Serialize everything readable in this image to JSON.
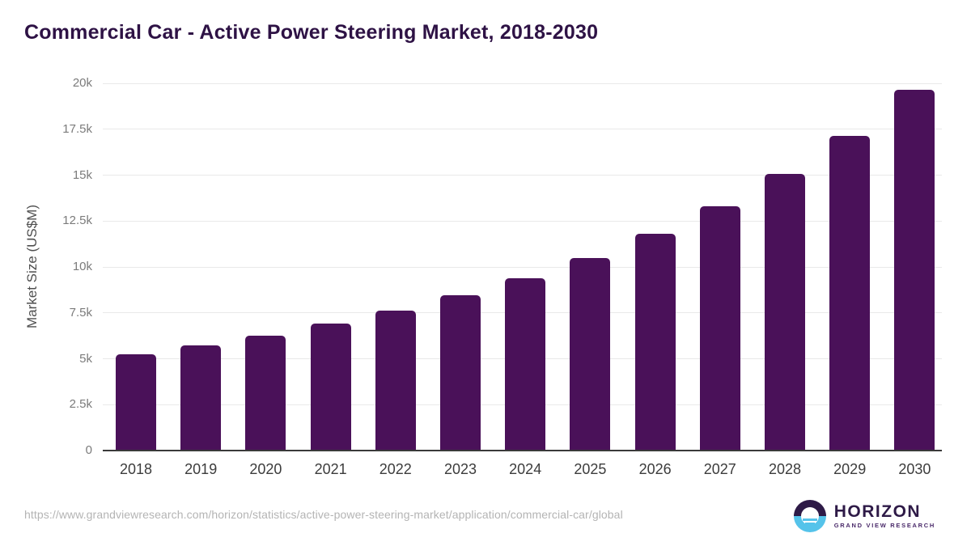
{
  "page": {
    "title": "Commercial Car - Active Power Steering Market, 2018-2030",
    "footer_url": "https://www.grandviewresearch.com/horizon/statistics/active-power-steering-market/application/commercial-car/global"
  },
  "logo": {
    "name": "HORIZON",
    "subtitle": "GRAND VIEW RESEARCH"
  },
  "colors": {
    "title": "#2e1245",
    "bar": "#4a1159",
    "gridline": "#e9e9e9",
    "axis_line": "#3a3a3a",
    "y_tick_text": "#7b7b7b",
    "x_tick_text": "#3c3c3c",
    "footer_text": "#b4b4b4",
    "logo_purple": "#2e1a47",
    "logo_blue": "#55c3ea",
    "logo_subtitle_purple": "#4a2a6a"
  },
  "chart_data": {
    "type": "bar",
    "title": "Commercial Car - Active Power Steering Market, 2018-2030",
    "xlabel": "",
    "ylabel": "Market Size (US$M)",
    "categories": [
      "2018",
      "2019",
      "2020",
      "2021",
      "2022",
      "2023",
      "2024",
      "2025",
      "2026",
      "2027",
      "2028",
      "2029",
      "2030"
    ],
    "values": [
      5230,
      5720,
      6260,
      6910,
      7630,
      8450,
      9380,
      10490,
      11790,
      13320,
      15070,
      17140,
      19650
    ],
    "ylim": [
      0,
      20000
    ],
    "y_ticks": [
      {
        "value": 0,
        "label": "0"
      },
      {
        "value": 2500,
        "label": "2.5k"
      },
      {
        "value": 5000,
        "label": "5k"
      },
      {
        "value": 7500,
        "label": "7.5k"
      },
      {
        "value": 10000,
        "label": "10k"
      },
      {
        "value": 12500,
        "label": "12.5k"
      },
      {
        "value": 15000,
        "label": "15k"
      },
      {
        "value": 17500,
        "label": "17.5k"
      },
      {
        "value": 20000,
        "label": "20k"
      }
    ],
    "grid": true,
    "legend": "none",
    "bar_color": "#4a1159"
  }
}
